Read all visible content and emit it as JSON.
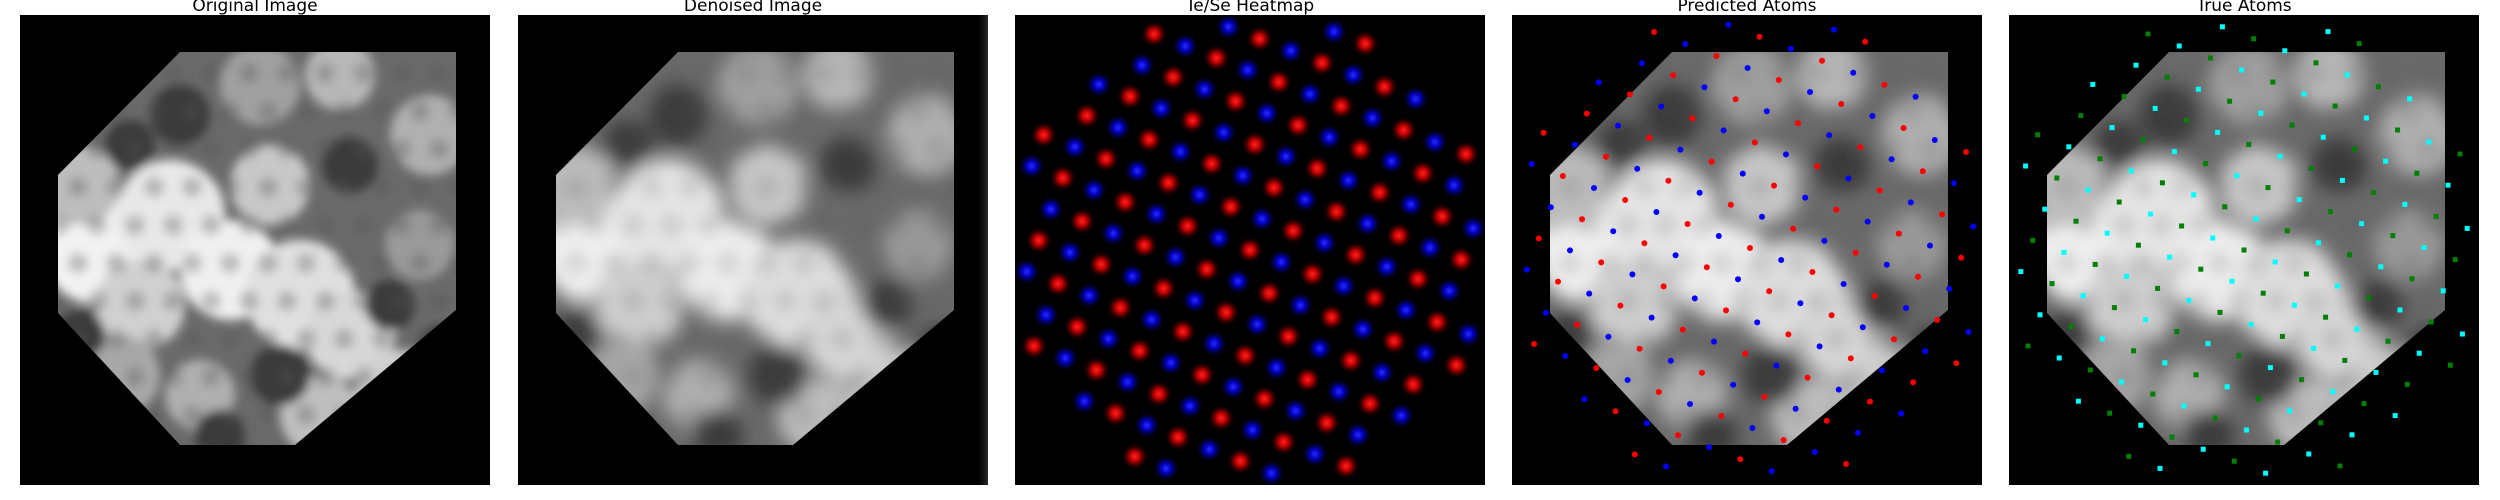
{
  "panels": [
    {
      "title": "Original Image"
    },
    {
      "title": "Denoised Image"
    },
    {
      "title": "Te/Se Heatmap"
    },
    {
      "title": "Predicted Atoms"
    },
    {
      "title": "True Atoms"
    }
  ],
  "colors": {
    "te": "#ff0000",
    "se": "#0000ff",
    "true_te": "#00ffff",
    "true_se": "#008000"
  }
}
